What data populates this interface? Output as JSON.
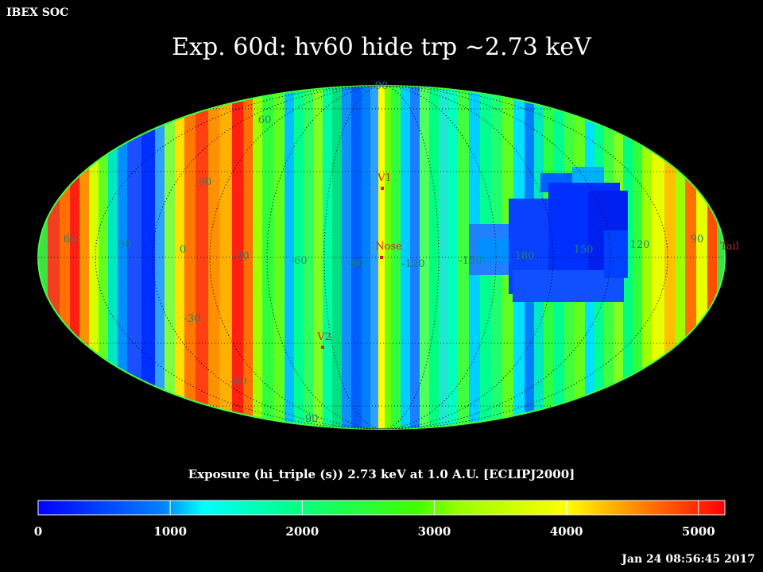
{
  "org_label": "IBEX SOC",
  "title": "Exp.   60d: hv60 hide trp ~2.73 keV",
  "colorbar": {
    "caption": "Exposure (hi_triple (s))  2.73 keV at 1.0 A.U. [ECLIPJ2000]",
    "min": 0,
    "max": 5200,
    "tick_labels": [
      "0",
      "1000",
      "2000",
      "3000",
      "4000",
      "5000"
    ],
    "tick_values": [
      0,
      1000,
      2000,
      3000,
      4000,
      5000
    ]
  },
  "timestamp": "Jan 24 08:56:45 2017",
  "map": {
    "projection": "Mollweide",
    "frame": "ECLIPJ2000",
    "grid": true,
    "longitude_labels": [
      "60",
      "30",
      "0",
      "-30",
      "-60",
      "-90",
      "-120",
      "-150",
      "180",
      "150",
      "120",
      "90"
    ],
    "latitude_labels": [
      "90",
      "60",
      "30",
      "-30",
      "-60",
      "-90"
    ],
    "markers": [
      {
        "label": "V1",
        "color": "#d02020"
      },
      {
        "label": "Nose",
        "color": "#d02020"
      },
      {
        "label": "V2",
        "color": "#d02020"
      },
      {
        "label": "Tail",
        "color": "#b03030"
      }
    ]
  }
}
